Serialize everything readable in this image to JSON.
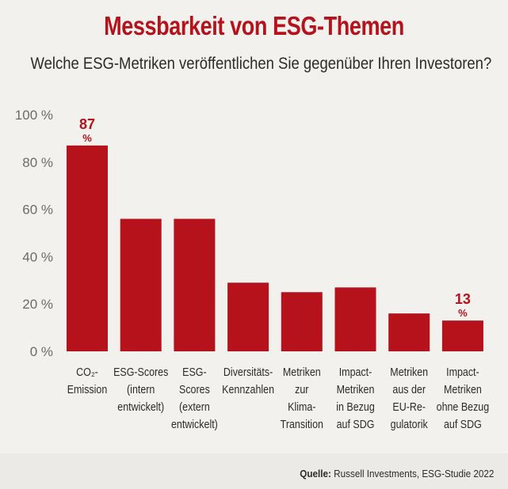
{
  "header": {
    "title": "Messbarkeit von ESG-Themen",
    "subtitle": "Welche ESG-Metriken veröffentlichen Sie gegenüber Ihren Investoren?"
  },
  "source": {
    "label": "Quelle:",
    "text": "Russell Investments, ESG-Studie 2022"
  },
  "colors": {
    "bar": "#b5121b",
    "accent": "#b5121b",
    "axis_text": "#6b6b6b",
    "grid": "#dcdbd7"
  },
  "chart_data": {
    "type": "bar",
    "categories": [
      [
        "CO₂-",
        "Emission"
      ],
      [
        "ESG-Scores",
        "(intern",
        "entwickelt)"
      ],
      [
        "ESG-",
        "Scores",
        "(extern",
        "entwickelt)"
      ],
      [
        "Diversitäts-",
        "Kennzahlen"
      ],
      [
        "Metriken",
        "zur",
        "Klima-",
        "Transition"
      ],
      [
        "Impact-",
        "Metriken",
        "in Bezug",
        "auf SDG"
      ],
      [
        "Metriken",
        "aus der",
        "EU-Re-",
        "gulatorik"
      ],
      [
        "Impact-",
        "Metriken",
        "ohne Bezug",
        "auf SDG"
      ]
    ],
    "values": [
      87,
      56,
      56,
      29,
      25,
      27,
      16,
      13
    ],
    "data_labels": [
      {
        "index": 0,
        "value": "87",
        "unit": "%"
      },
      {
        "index": 7,
        "value": "13",
        "unit": "%"
      }
    ],
    "yticks": [
      "0 %",
      "20 %",
      "40 %",
      "60 %",
      "80 %",
      "100 %"
    ],
    "ylim": [
      0,
      100
    ],
    "grid": false,
    "legend": "none"
  }
}
